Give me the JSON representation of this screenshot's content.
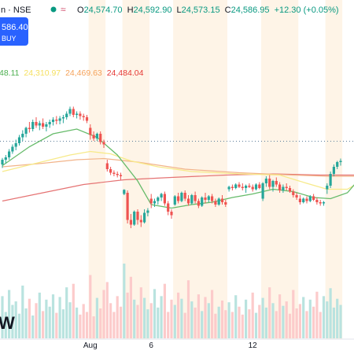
{
  "header": {
    "symbol_suffix": "n · NSE",
    "live_dot_color": "#089981",
    "wave_icon": "≈",
    "open_label": "O",
    "open": "24,574.70",
    "high_label": "H",
    "high": "24,592.90",
    "low_label": "L",
    "low": "24,573.15",
    "close_label": "C",
    "close": "24,586.95",
    "change": "+12.30 (+0.05%)",
    "price_box": "586.40",
    "buy_label": "BUY"
  },
  "ma_values": [
    {
      "text": "48.11",
      "color": "#4caf50"
    },
    {
      "text": "24,310.97",
      "color": "#f5e060"
    },
    {
      "text": "24,469.63",
      "color": "#f5a25a"
    },
    {
      "text": "24,484.04",
      "color": "#e53935"
    }
  ],
  "watermark": "W",
  "colors": {
    "up": "#26a69a",
    "down": "#ef5350",
    "up_volume": "#b9e3df",
    "down_volume": "#fccbcb",
    "session_band": "#fdebd3",
    "ma_green": "#66bb6a",
    "ma_yellow": "#f7ea8a",
    "ma_orange": "#f2b48a",
    "ma_red": "#e57373",
    "last_price_line": "#5b7c99"
  },
  "chart_data": {
    "type": "candlestick",
    "x_tick_labels": [
      "Aug",
      "6",
      "12"
    ],
    "price_range": [
      23750,
      25050
    ],
    "last_price": 24586.95,
    "candles": [
      [
        24390,
        24445,
        24360,
        24430
      ],
      [
        24430,
        24470,
        24400,
        24450
      ],
      [
        24450,
        24520,
        24430,
        24500
      ],
      [
        24500,
        24560,
        24480,
        24540
      ],
      [
        24540,
        24600,
        24510,
        24570
      ],
      [
        24570,
        24640,
        24550,
        24620
      ],
      [
        24620,
        24680,
        24590,
        24650
      ],
      [
        24650,
        24710,
        24620,
        24700
      ],
      [
        24700,
        24750,
        24660,
        24690
      ],
      [
        24690,
        24770,
        24670,
        24750
      ],
      [
        24750,
        24790,
        24700,
        24720
      ],
      [
        24720,
        24760,
        24680,
        24740
      ],
      [
        24740,
        24780,
        24690,
        24710
      ],
      [
        24710,
        24750,
        24670,
        24730
      ],
      [
        24730,
        24770,
        24700,
        24750
      ],
      [
        24750,
        24790,
        24720,
        24770
      ],
      [
        24770,
        24800,
        24730,
        24760
      ],
      [
        24760,
        24800,
        24730,
        24780
      ],
      [
        24780,
        24810,
        24740,
        24790
      ],
      [
        24790,
        24840,
        24770,
        24820
      ],
      [
        24820,
        24880,
        24800,
        24860
      ],
      [
        24860,
        24880,
        24790,
        24810
      ],
      [
        24810,
        24840,
        24780,
        24820
      ],
      [
        24820,
        24840,
        24770,
        24800
      ],
      [
        24800,
        24820,
        24760,
        24790
      ],
      [
        24790,
        24810,
        24740,
        24760
      ],
      [
        24700,
        24730,
        24600,
        24640
      ],
      [
        24640,
        24670,
        24590,
        24610
      ],
      [
        24610,
        24660,
        24590,
        24650
      ],
      [
        24650,
        24670,
        24560,
        24580
      ],
      [
        24580,
        24600,
        24530,
        24560
      ],
      [
        24400,
        24430,
        24330,
        24350
      ],
      [
        24350,
        24370,
        24300,
        24320
      ],
      [
        24320,
        24340,
        24290,
        24310
      ],
      [
        24310,
        24330,
        24280,
        24300
      ],
      [
        24300,
        24320,
        24260,
        24290
      ],
      [
        24140,
        24180,
        24130,
        24175
      ],
      [
        24150,
        24170,
        23890,
        23920
      ],
      [
        23920,
        23970,
        23850,
        23880
      ],
      [
        23880,
        24000,
        23870,
        23990
      ],
      [
        23990,
        24010,
        23880,
        23920
      ],
      [
        23920,
        23960,
        23860,
        23900
      ],
      [
        23900,
        24010,
        23890,
        23980
      ],
      [
        23980,
        24020,
        23950,
        24000
      ],
      [
        24100,
        24140,
        24020,
        24060
      ],
      [
        24060,
        24100,
        24030,
        24080
      ],
      [
        24080,
        24120,
        24050,
        24110
      ],
      [
        24110,
        24150,
        24080,
        24140
      ],
      [
        24140,
        24160,
        24040,
        24060
      ],
      [
        24060,
        24080,
        23960,
        23990
      ],
      [
        23990,
        24010,
        23930,
        23960
      ],
      [
        24050,
        24130,
        24040,
        24120
      ],
      [
        24120,
        24150,
        24060,
        24080
      ],
      [
        24080,
        24160,
        24070,
        24150
      ],
      [
        24150,
        24170,
        24080,
        24100
      ],
      [
        24100,
        24130,
        24040,
        24060
      ],
      [
        24060,
        24140,
        24050,
        24130
      ],
      [
        24130,
        24160,
        24060,
        24080
      ],
      [
        24080,
        24100,
        24020,
        24040
      ],
      [
        24040,
        24120,
        24030,
        24110
      ],
      [
        24110,
        24150,
        24060,
        24090
      ],
      [
        24090,
        24130,
        24070,
        24120
      ],
      [
        24120,
        24140,
        24060,
        24080
      ],
      [
        24080,
        24100,
        24030,
        24050
      ],
      [
        24050,
        24110,
        24040,
        24100
      ],
      [
        24100,
        24130,
        24050,
        24070
      ],
      [
        24070,
        24090,
        24030,
        24050
      ],
      [
        24180,
        24210,
        24160,
        24200
      ],
      [
        24200,
        24220,
        24170,
        24190
      ],
      [
        24190,
        24230,
        24180,
        24220
      ],
      [
        24220,
        24240,
        24190,
        24200
      ],
      [
        24200,
        24230,
        24170,
        24190
      ],
      [
        24190,
        24220,
        24150,
        24210
      ],
      [
        24210,
        24230,
        24190,
        24200
      ],
      [
        24200,
        24220,
        24160,
        24180
      ],
      [
        24180,
        24230,
        24170,
        24220
      ],
      [
        24220,
        24240,
        24180,
        24190
      ],
      [
        24100,
        24240,
        24080,
        24230
      ],
      [
        24230,
        24290,
        24200,
        24270
      ],
      [
        24270,
        24300,
        24180,
        24200
      ],
      [
        24200,
        24260,
        24160,
        24250
      ],
      [
        24250,
        24280,
        24200,
        24220
      ],
      [
        24220,
        24240,
        24150,
        24170
      ],
      [
        24170,
        24220,
        24150,
        24200
      ],
      [
        24200,
        24230,
        24170,
        24190
      ],
      [
        24190,
        24210,
        24150,
        24160
      ],
      [
        24160,
        24180,
        24110,
        24130
      ],
      [
        24130,
        24150,
        24090,
        24110
      ],
      [
        24100,
        24130,
        24050,
        24070
      ],
      [
        24070,
        24110,
        24060,
        24100
      ],
      [
        24100,
        24120,
        24060,
        24080
      ],
      [
        24080,
        24130,
        24070,
        24120
      ],
      [
        24120,
        24140,
        24080,
        24090
      ],
      [
        24090,
        24110,
        24050,
        24070
      ],
      [
        24070,
        24090,
        24040,
        24060
      ],
      [
        24060,
        24080,
        24040,
        24070
      ],
      [
        24180,
        24230,
        24140,
        24210
      ],
      [
        24210,
        24330,
        24190,
        24310
      ],
      [
        24310,
        24390,
        24290,
        24370
      ],
      [
        24370,
        24420,
        24350,
        24410
      ],
      [
        24410,
        24440,
        24380,
        24420
      ]
    ],
    "volume": [
      48,
      30,
      55,
      38,
      42,
      28,
      60,
      34,
      45,
      26,
      40,
      52,
      31,
      44,
      36,
      50,
      29,
      47,
      33,
      58,
      41,
      62,
      35,
      27,
      39,
      30,
      72,
      25,
      46,
      34,
      55,
      64,
      40,
      30,
      48,
      36,
      85,
      52,
      70,
      44,
      38,
      58,
      46,
      33,
      40,
      56,
      35,
      48,
      62,
      30,
      44,
      38,
      52,
      45,
      29,
      66,
      42,
      35,
      50,
      31,
      47,
      40,
      55,
      28,
      36,
      43,
      32,
      41,
      30,
      49,
      36,
      27,
      44,
      33,
      52,
      29,
      38,
      46,
      35,
      58,
      40,
      31,
      50,
      37,
      42,
      28,
      55,
      34,
      39,
      47,
      31,
      44,
      36,
      53,
      30,
      48,
      42,
      57,
      35,
      45,
      38
    ],
    "sessions": [
      26,
      5,
      5,
      8,
      7,
      16,
      10,
      11,
      8,
      5
    ],
    "ma_green": [
      [
        0,
        24380
      ],
      [
        8,
        24540
      ],
      [
        15,
        24650
      ],
      [
        22,
        24690
      ],
      [
        28,
        24620
      ],
      [
        34,
        24470
      ],
      [
        40,
        24250
      ],
      [
        44,
        24050
      ],
      [
        50,
        24020
      ],
      [
        56,
        24050
      ],
      [
        62,
        24070
      ],
      [
        68,
        24110
      ],
      [
        74,
        24140
      ],
      [
        80,
        24180
      ],
      [
        86,
        24160
      ],
      [
        92,
        24110
      ],
      [
        97,
        24100
      ],
      [
        102,
        24150
      ],
      [
        105,
        24250
      ]
    ],
    "ma_yellow": [
      [
        0,
        24330
      ],
      [
        10,
        24400
      ],
      [
        20,
        24470
      ],
      [
        26,
        24500
      ],
      [
        32,
        24480
      ],
      [
        38,
        24420
      ],
      [
        46,
        24370
      ],
      [
        56,
        24330
      ],
      [
        70,
        24310
      ],
      [
        82,
        24300
      ],
      [
        90,
        24230
      ],
      [
        96,
        24180
      ],
      [
        102,
        24180
      ],
      [
        105,
        24230
      ]
    ],
    "ma_orange": [
      [
        0,
        24370
      ],
      [
        12,
        24400
      ],
      [
        22,
        24430
      ],
      [
        30,
        24440
      ],
      [
        40,
        24410
      ],
      [
        54,
        24350
      ],
      [
        70,
        24320
      ],
      [
        86,
        24300
      ],
      [
        96,
        24290
      ],
      [
        105,
        24290
      ]
    ],
    "ma_red": [
      [
        0,
        24080
      ],
      [
        12,
        24150
      ],
      [
        24,
        24220
      ],
      [
        36,
        24260
      ],
      [
        50,
        24280
      ],
      [
        66,
        24300
      ],
      [
        80,
        24310
      ],
      [
        94,
        24300
      ],
      [
        105,
        24300
      ]
    ]
  }
}
